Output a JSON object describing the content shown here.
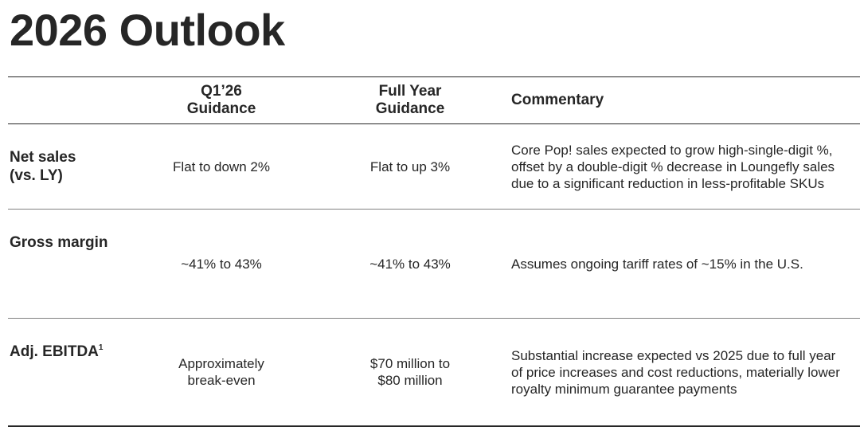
{
  "title": "2026 Outlook",
  "columns": {
    "q1": [
      "Q1’26",
      "Guidance"
    ],
    "full_year": [
      "Full Year",
      "Guidance"
    ],
    "commentary": "Commentary"
  },
  "rows": [
    {
      "metric": [
        "Net sales",
        "(vs. LY)"
      ],
      "q1": "Flat to down 2%",
      "full_year": "Flat to up 3%",
      "commentary": "Core Pop! sales expected to grow high-single-digit %, offset by a double-digit % decrease in Loungefly sales due to a significant reduction in less-profitable SKUs"
    },
    {
      "metric": [
        "Gross margin"
      ],
      "q1": "~41% to 43%",
      "full_year": "~41% to 43%",
      "commentary": "Assumes ongoing tariff rates of ~15% in the U.S."
    },
    {
      "metric": [
        "Adj. EBITDA"
      ],
      "metric_footnote": "1",
      "q1": [
        "Approximately",
        "break-even"
      ],
      "full_year": [
        "$70 million to",
        "$80 million"
      ],
      "commentary": "Substantial increase expected vs 2025 due to full year of price increases and cost reductions, materially lower royalty minimum guarantee payments"
    }
  ]
}
